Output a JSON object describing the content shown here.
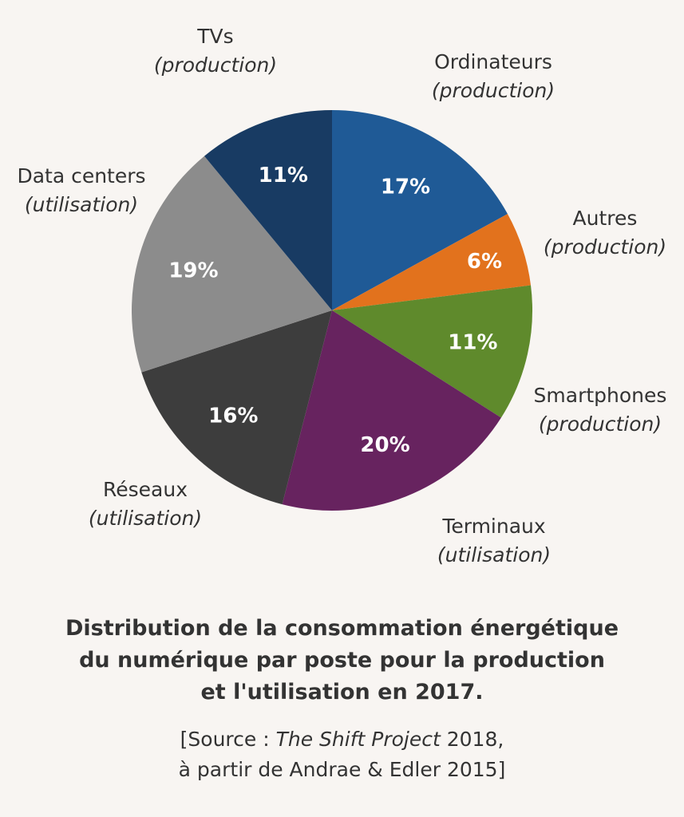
{
  "chart_data": {
    "type": "pie",
    "title": [
      "Distribution de la consommation énergétique",
      "du numérique par poste pour la production",
      "et l'utilisation en 2017."
    ],
    "source": {
      "prefix": "[Source : ",
      "italic": "The Shift Project",
      "suffix": " 2018,",
      "line2": "à partir de Andrae & Edler 2015]"
    },
    "start": "top",
    "direction": "clockwise",
    "slices": [
      {
        "name": "Ordinateurs",
        "sub": "(production)",
        "value": 17,
        "label": "17%",
        "color": "#1f5a96"
      },
      {
        "name": "Autres",
        "sub": "(production)",
        "value": 6,
        "label": "6%",
        "color": "#e2721d"
      },
      {
        "name": "Smartphones",
        "sub": "(production)",
        "value": 11,
        "label": "11%",
        "color": "#5f8a2c"
      },
      {
        "name": "Terminaux",
        "sub": "(utilisation)",
        "value": 20,
        "label": "20%",
        "color": "#67235f"
      },
      {
        "name": "Réseaux",
        "sub": "(utilisation)",
        "value": 16,
        "label": "16%",
        "color": "#3d3d3d"
      },
      {
        "name": "Data centers",
        "sub": "(utilisation)",
        "value": 19,
        "label": "19%",
        "color": "#8c8c8c"
      },
      {
        "name": "TVs",
        "sub": "(production)",
        "value": 11,
        "label": "11%",
        "color": "#183b63"
      }
    ]
  }
}
